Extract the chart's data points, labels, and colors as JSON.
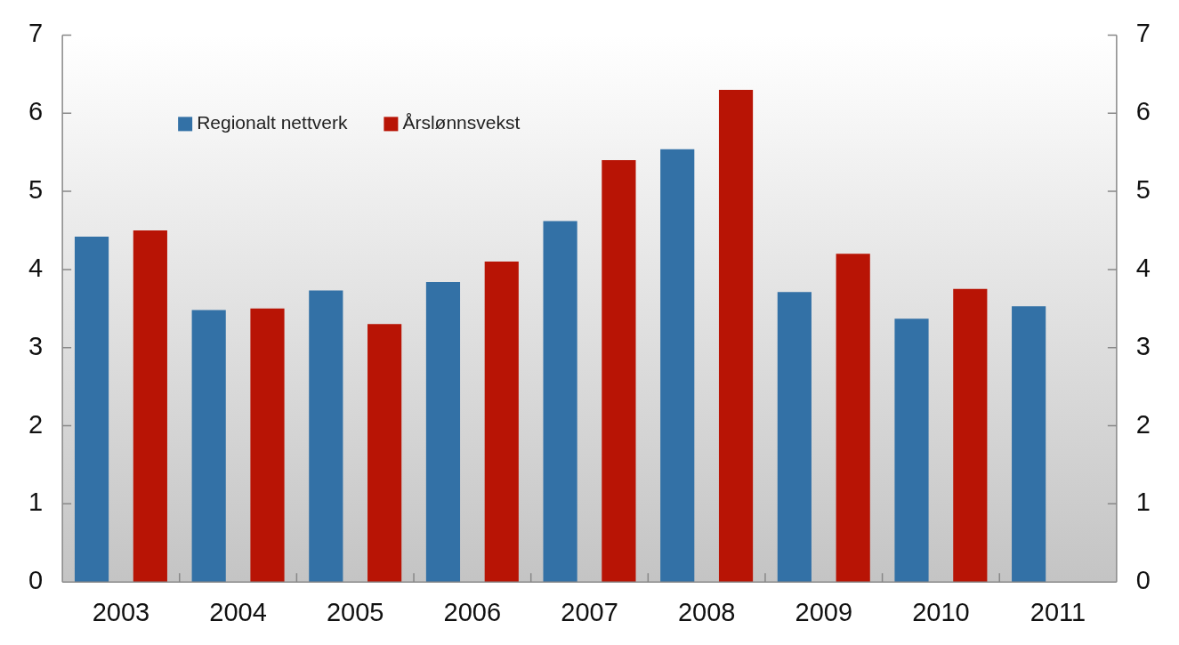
{
  "chart_data": {
    "type": "bar",
    "categories": [
      "2003",
      "2004",
      "2005",
      "2006",
      "2007",
      "2008",
      "2009",
      "2010",
      "2011"
    ],
    "series": [
      {
        "name": "Regionalt nettverk",
        "color": "#3371a6",
        "values": [
          4.42,
          3.48,
          3.73,
          3.84,
          4.62,
          5.54,
          3.71,
          3.37,
          3.53
        ]
      },
      {
        "name": "Årslønnsvekst",
        "color": "#b81405",
        "values": [
          4.5,
          3.5,
          3.3,
          4.1,
          5.4,
          6.3,
          4.2,
          3.75,
          null
        ]
      }
    ],
    "ylim": [
      0,
      7
    ],
    "yticks": [
      0,
      1,
      2,
      3,
      4,
      5,
      6,
      7
    ],
    "y2lim": [
      0,
      7
    ],
    "y2ticks": [
      0,
      1,
      2,
      3,
      4,
      5,
      6,
      7
    ],
    "grid": false,
    "legend": "top left"
  }
}
